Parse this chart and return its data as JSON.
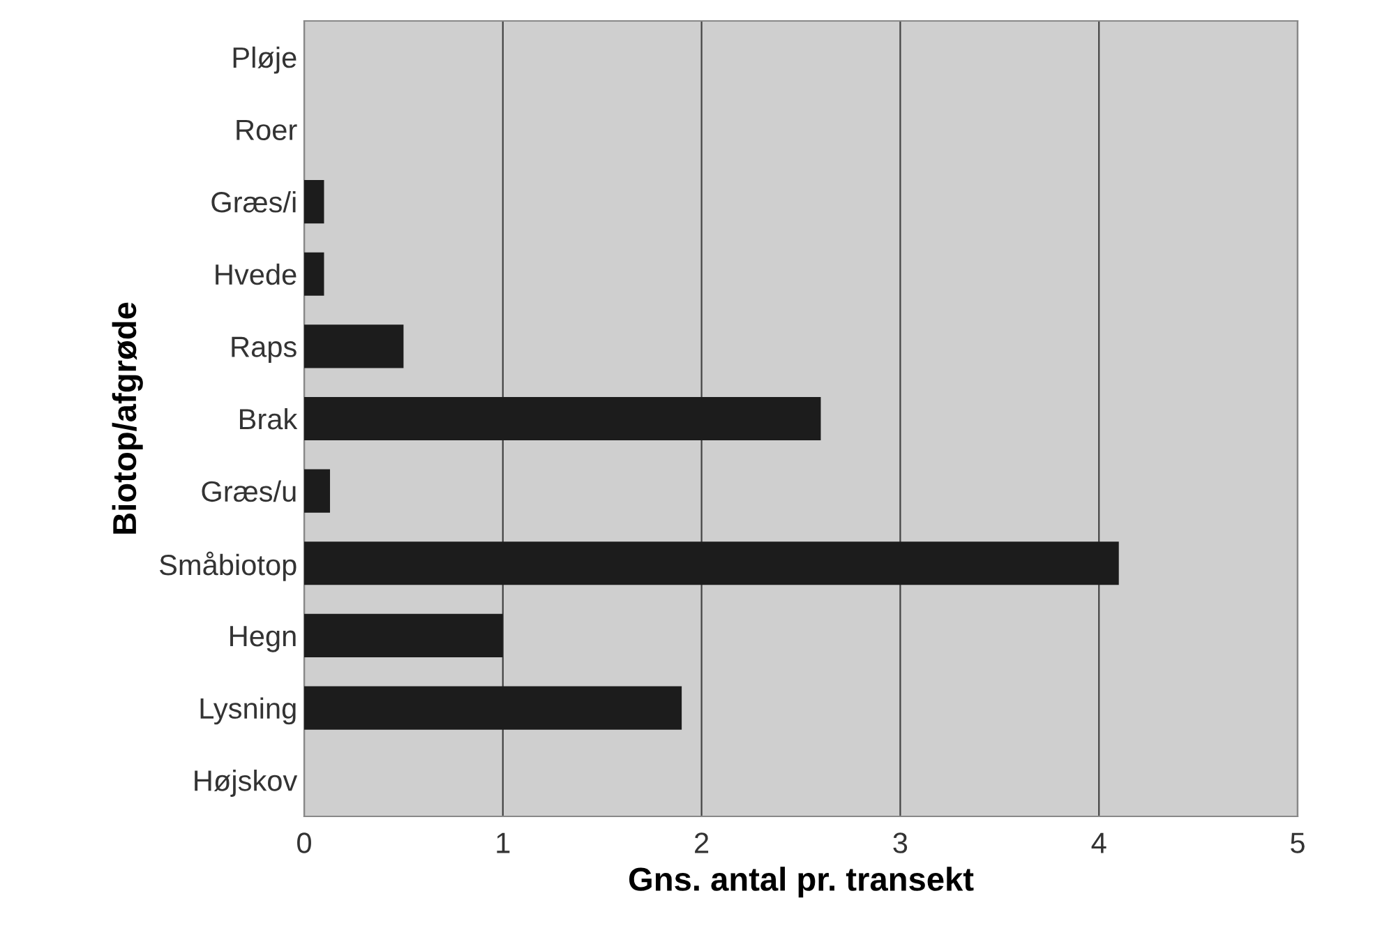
{
  "chart_data": {
    "type": "bar",
    "orientation": "horizontal",
    "xlabel": "Gns. antal pr. transekt",
    "ylabel": "Biotop/afgrøde",
    "categories": [
      "Pløje",
      "Roer",
      "Græs/i",
      "Hvede",
      "Raps",
      "Brak",
      "Græs/u",
      "Småbiotop",
      "Hegn",
      "Lysning",
      "Højskov"
    ],
    "values": [
      0,
      0,
      0.1,
      0.1,
      0.5,
      2.6,
      0.13,
      4.1,
      1.0,
      1.9,
      0
    ],
    "color": "#1c1c1c",
    "xlim": [
      0,
      5
    ],
    "xticks": [
      0,
      1,
      2,
      3,
      4,
      5
    ],
    "grid": "x",
    "legend": false
  }
}
